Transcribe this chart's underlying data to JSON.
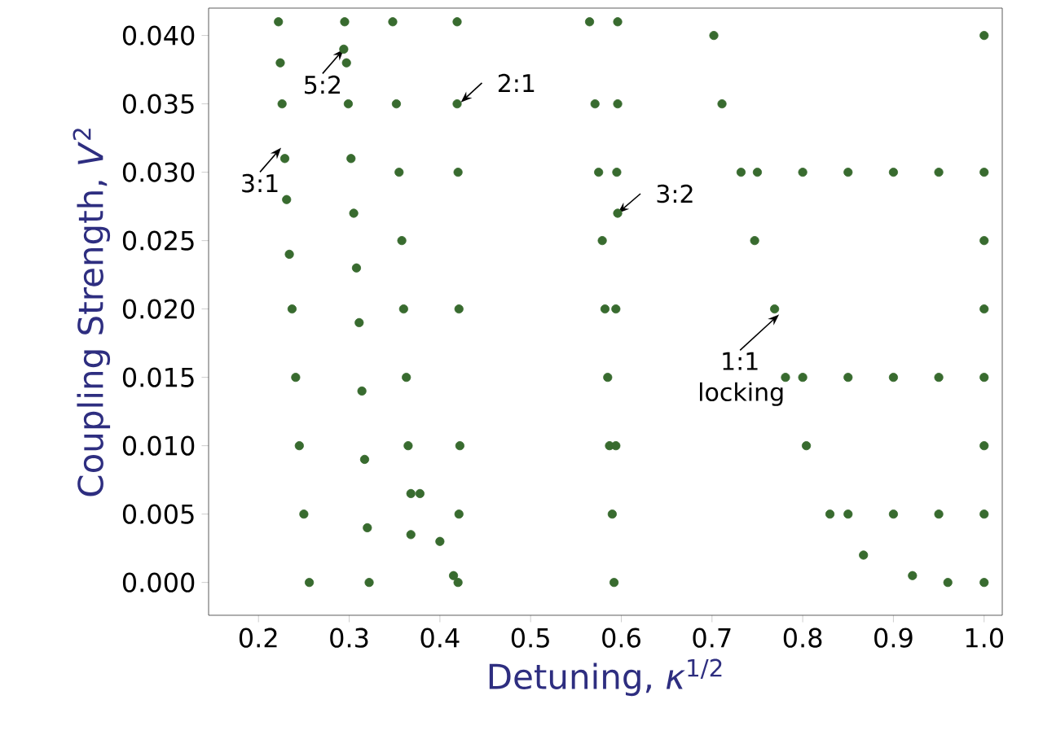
{
  "chart_data": {
    "type": "scatter",
    "xlabel": "Detuning, *κ*$^{1/2}$",
    "ylabel": "Coupling Strength, *V*$^{2}$",
    "xlim": [
      0.145,
      1.02
    ],
    "ylim": [
      -0.0024,
      0.042
    ],
    "xticks": [
      0.2,
      0.3,
      0.4,
      0.5,
      0.6,
      0.7,
      0.8,
      0.9,
      {
        "value": 1.0,
        "label": "1.0"
      }
    ],
    "yticks": [
      {
        "value": 0,
        "label": "0.000"
      },
      0.005,
      {
        "value": 0.01,
        "label": "0.010"
      },
      0.015,
      {
        "value": 0.02,
        "label": "0.020"
      },
      0.025,
      {
        "value": 0.03,
        "label": "0.030"
      },
      0.035,
      {
        "value": 0.04,
        "label": "0.040"
      }
    ],
    "series": [
      {
        "color": "#386b2f",
        "x": [
          0.222,
          0.224,
          0.226,
          0.229,
          0.231,
          0.234,
          0.237,
          0.241,
          0.245,
          0.25,
          0.256
        ],
        "values": [
          0.041,
          0.038,
          0.035,
          0.031,
          0.028,
          0.024,
          0.02,
          0.015,
          0.01,
          0.005,
          0.0
        ]
      },
      {
        "color": "#386b2f",
        "x": [
          0.295,
          0.294,
          0.297,
          0.299,
          0.302,
          0.305,
          0.308,
          0.311,
          0.314,
          0.317,
          0.32,
          0.322
        ],
        "values": [
          0.041,
          0.039,
          0.038,
          0.035,
          0.031,
          0.027,
          0.023,
          0.019,
          0.014,
          0.009,
          0.004,
          0.0
        ]
      },
      {
        "color": "#386b2f",
        "x": [
          0.348,
          0.352,
          0.355,
          0.358,
          0.36,
          0.363,
          0.365,
          0.368,
          0.368,
          0.378,
          0.4,
          0.415,
          0.42,
          0.421,
          0.422,
          0.421,
          0.42,
          0.419,
          0.419
        ],
        "values": [
          0.041,
          0.035,
          0.03,
          0.025,
          0.02,
          0.015,
          0.01,
          0.0065,
          0.0035,
          0.0065,
          0.003,
          0.0005,
          0.0,
          0.005,
          0.01,
          0.02,
          0.03,
          0.035,
          0.041
        ]
      },
      {
        "color": "#386b2f",
        "x": [
          0.565,
          0.571,
          0.575,
          0.579,
          0.582,
          0.585,
          0.587,
          0.59,
          0.592,
          0.594,
          0.594,
          0.596,
          0.595,
          0.596,
          0.596
        ],
        "values": [
          0.041,
          0.035,
          0.03,
          0.025,
          0.02,
          0.015,
          0.01,
          0.005,
          0.0,
          0.01,
          0.02,
          0.027,
          0.03,
          0.035,
          0.041
        ]
      },
      {
        "color": "#386b2f",
        "x": [
          0.702,
          0.711,
          0.732,
          0.747,
          0.769,
          0.781,
          0.804,
          0.83,
          0.867,
          0.921,
          0.96,
          1.0,
          1.0,
          1.0,
          1.0,
          1.0,
          1.0,
          1.0,
          1.0,
          0.85,
          0.9,
          0.95,
          0.8,
          0.85,
          0.9,
          0.95,
          0.75,
          0.8,
          0.85,
          0.9,
          0.95
        ],
        "values": [
          0.04,
          0.035,
          0.03,
          0.025,
          0.02,
          0.015,
          0.01,
          0.005,
          0.002,
          0.0005,
          0.0,
          0.0,
          0.005,
          0.01,
          0.015,
          0.02,
          0.025,
          0.03,
          0.04,
          0.005,
          0.005,
          0.005,
          0.015,
          0.015,
          0.015,
          0.015,
          0.03,
          0.03,
          0.03,
          0.03,
          0.03
        ]
      }
    ],
    "annotations": [
      {
        "text": "3:1",
        "x": 0.225,
        "y": 0.0318
      },
      {
        "text": "5:2",
        "x": 0.294,
        "y": 0.039
      },
      {
        "text": "2:1",
        "x": 0.423,
        "y": 0.0351
      },
      {
        "text": "3:2",
        "x": 0.596,
        "y": 0.027
      },
      {
        "text": "1:1 locking",
        "x": 0.774,
        "y": 0.0196
      }
    ]
  }
}
